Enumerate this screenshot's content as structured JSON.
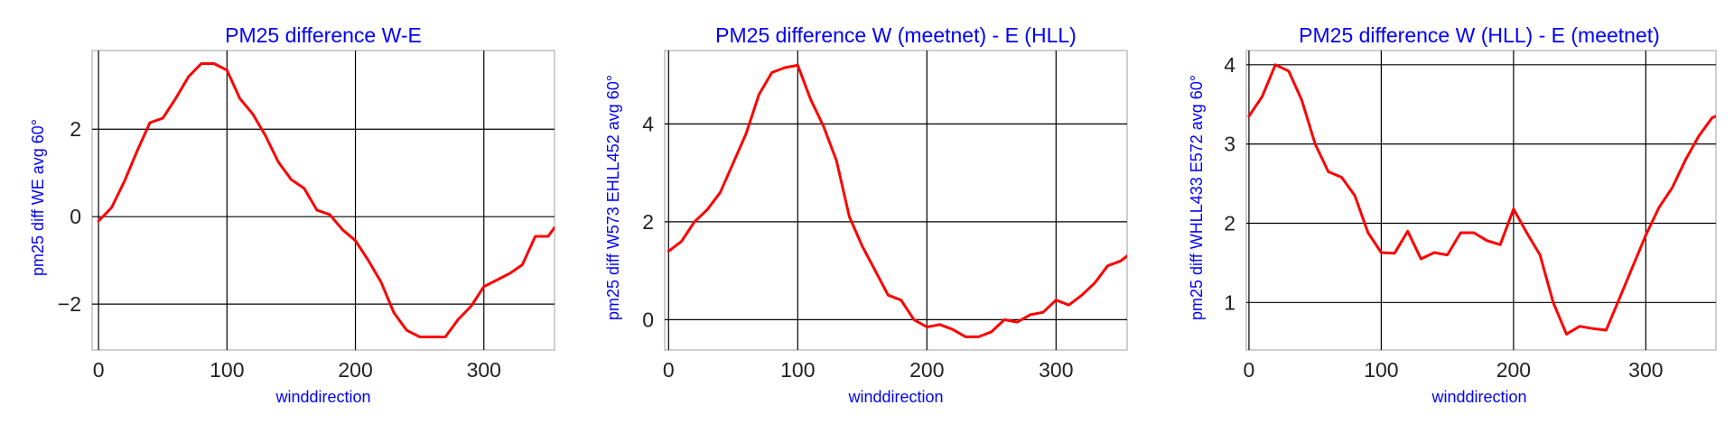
{
  "colors": {
    "line": "#ff0000",
    "label": "#0000ff",
    "grid": "#000000",
    "frame": "#bfbfbf",
    "tick_text": "#222222",
    "background": "#ffffff"
  },
  "chart_data": [
    {
      "type": "line",
      "title": "PM25 difference W-E",
      "xlabel": "winddirection",
      "ylabel": "pm25 diff WE avg 60°",
      "xlim": [
        -5,
        355
      ],
      "ylim": [
        -3.05,
        3.8
      ],
      "xticks": [
        0,
        100,
        200,
        300
      ],
      "yticks": [
        -2,
        0,
        2
      ],
      "grid": true,
      "series": [
        {
          "x": [
            0,
            10,
            20,
            30,
            40,
            50,
            60,
            70,
            80,
            90,
            100,
            110,
            120,
            130,
            140,
            150,
            160,
            170,
            180,
            190,
            200,
            210,
            220,
            230,
            240,
            250,
            260,
            270,
            280,
            290,
            300,
            310,
            320,
            330,
            340,
            350,
            355
          ],
          "y": [
            -0.1,
            0.2,
            0.8,
            1.5,
            2.15,
            2.25,
            2.7,
            3.2,
            3.5,
            3.5,
            3.35,
            2.7,
            2.35,
            1.85,
            1.25,
            0.85,
            0.65,
            0.15,
            0.05,
            -0.3,
            -0.55,
            -1.0,
            -1.5,
            -2.2,
            -2.6,
            -2.75,
            -2.75,
            -2.75,
            -2.35,
            -2.05,
            -1.6,
            -1.45,
            -1.3,
            -1.1,
            -0.45,
            -0.45,
            -0.25
          ]
        }
      ]
    },
    {
      "type": "line",
      "title": "PM25 difference W (meetnet) - E (HLL)",
      "xlabel": "winddirection",
      "ylabel": "pm25 diff W573 EHLL452 avg 60°",
      "xlim": [
        -3,
        355
      ],
      "ylim": [
        -0.62,
        5.5
      ],
      "xticks": [
        0,
        100,
        200,
        300
      ],
      "yticks": [
        0,
        2,
        4
      ],
      "grid": true,
      "series": [
        {
          "x": [
            0,
            10,
            20,
            30,
            40,
            50,
            60,
            70,
            80,
            90,
            100,
            110,
            120,
            130,
            140,
            150,
            160,
            170,
            180,
            190,
            200,
            210,
            220,
            230,
            240,
            250,
            260,
            270,
            280,
            290,
            300,
            310,
            320,
            330,
            340,
            350,
            355
          ],
          "y": [
            1.4,
            1.6,
            2.0,
            2.25,
            2.6,
            3.2,
            3.8,
            4.6,
            5.05,
            5.15,
            5.2,
            4.5,
            3.95,
            3.25,
            2.1,
            1.5,
            1.0,
            0.5,
            0.4,
            0.0,
            -0.15,
            -0.1,
            -0.2,
            -0.35,
            -0.35,
            -0.25,
            0.0,
            -0.05,
            0.1,
            0.15,
            0.4,
            0.3,
            0.5,
            0.75,
            1.1,
            1.2,
            1.3
          ]
        }
      ]
    },
    {
      "type": "line",
      "title": "PM25 difference W (HLL) - E (meetnet)",
      "xlabel": "winddirection",
      "ylabel": "pm25 diff WHLL433 E572 avg 60°",
      "xlim": [
        -2,
        353
      ],
      "ylim": [
        0.4,
        4.18
      ],
      "xticks": [
        0,
        100,
        200,
        300
      ],
      "yticks": [
        1,
        2,
        3,
        4
      ],
      "grid": true,
      "series": [
        {
          "x": [
            0,
            10,
            20,
            30,
            40,
            50,
            60,
            70,
            80,
            90,
            100,
            110,
            120,
            130,
            140,
            150,
            160,
            170,
            180,
            190,
            200,
            210,
            220,
            230,
            240,
            250,
            260,
            270,
            280,
            290,
            300,
            310,
            320,
            330,
            340,
            350,
            353
          ],
          "y": [
            3.35,
            3.6,
            4.0,
            3.92,
            3.55,
            3.0,
            2.65,
            2.58,
            2.35,
            1.88,
            1.63,
            1.62,
            1.9,
            1.55,
            1.63,
            1.6,
            1.88,
            1.88,
            1.78,
            1.73,
            2.18,
            1.88,
            1.6,
            1.0,
            0.6,
            0.7,
            0.67,
            0.65,
            1.05,
            1.45,
            1.85,
            2.2,
            2.45,
            2.8,
            3.1,
            3.33,
            3.35
          ]
        }
      ]
    }
  ]
}
